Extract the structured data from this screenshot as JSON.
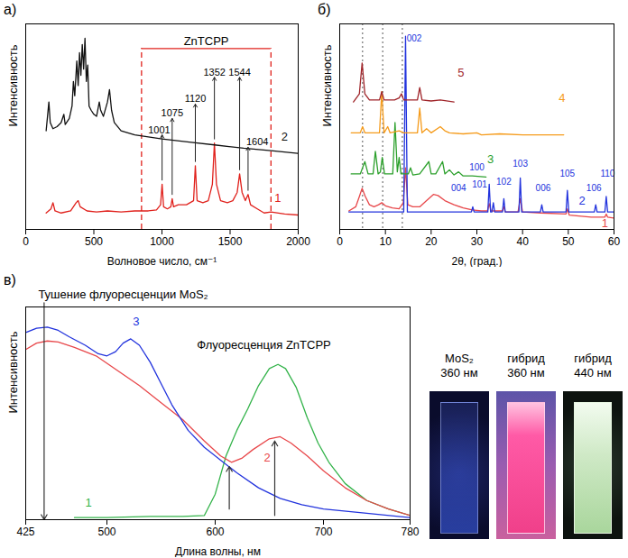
{
  "chart_data": [
    {
      "type": "line",
      "panel_label": "а)",
      "x_label": "Волновое число, см⁻¹",
      "y_label": "Интенсивность",
      "xlim": [
        0,
        2000
      ],
      "xticks": [
        0,
        500,
        1000,
        1500,
        2000
      ],
      "ylim": [
        0,
        100
      ],
      "tick_labels": "x",
      "grid": false,
      "series": [
        {
          "name": "1",
          "color": "#e0201b",
          "label_at": [
            1850,
            15
          ],
          "x": [
            150,
            185,
            200,
            215,
            260,
            330,
            370,
            385,
            400,
            450,
            520,
            600,
            700,
            800,
            900,
            960,
            990,
            1001,
            1012,
            1040,
            1065,
            1075,
            1085,
            1120,
            1180,
            1232,
            1245,
            1258,
            1300,
            1340,
            1370,
            1385,
            1400,
            1430,
            1480,
            1520,
            1552,
            1570,
            1588,
            1612,
            1632,
            1650,
            1700,
            1750,
            1800,
            1900,
            2000
          ],
          "values": [
            8,
            10,
            13,
            9,
            8,
            9,
            13,
            14,
            11,
            9,
            8.5,
            9,
            8.5,
            9,
            9,
            9.5,
            12,
            22,
            11,
            10,
            11,
            15,
            11,
            12,
            12,
            14,
            31,
            14,
            13,
            14,
            22,
            42,
            22,
            14,
            13,
            14,
            18,
            27,
            18,
            14,
            17,
            12,
            10,
            8,
            8.5,
            7.5,
            7
          ]
        },
        {
          "name": "2",
          "color": "#111111",
          "label_at": [
            1900,
            45
          ],
          "x": [
            150,
            160,
            170,
            180,
            200,
            230,
            260,
            280,
            290,
            320,
            340,
            350,
            360,
            375,
            385,
            395,
            405,
            415,
            425,
            435,
            445,
            455,
            465,
            480,
            500,
            520,
            540,
            550,
            570,
            600,
            615,
            630,
            650,
            700,
            750,
            800,
            900,
            1000,
            1200,
            1400,
            1600,
            1800,
            2000
          ],
          "values": [
            48,
            55,
            62,
            52,
            49,
            50,
            52,
            56,
            51,
            54,
            60,
            72,
            65,
            82,
            70,
            86,
            75,
            90,
            78,
            93,
            72,
            80,
            60,
            58,
            56,
            55,
            62,
            58,
            55,
            62,
            68,
            58,
            52,
            48,
            47,
            46,
            45,
            44,
            42.5,
            41,
            39.5,
            38.3,
            37
          ]
        }
      ],
      "region": {
        "label": "ZnTCPP",
        "x": [
          850,
          1800
        ],
        "y": 88,
        "color": "#e0201b",
        "line_style": "dashed"
      },
      "peak_labels": [
        {
          "label": "1001",
          "x": 1001,
          "label_x": 980,
          "from": 24,
          "to": 46
        },
        {
          "label": "1075",
          "x": 1075,
          "from": 17,
          "to": 54
        },
        {
          "label": "1120",
          "x": 1245,
          "from": 33,
          "to": 61
        },
        {
          "label": "1352",
          "x": 1385,
          "from": 44,
          "to": 74
        },
        {
          "label": "1544",
          "x": 1570,
          "from": 29,
          "to": 74
        },
        {
          "label": "1604",
          "x": 1632,
          "label_x": 1700,
          "from": 19,
          "to": 40
        }
      ]
    },
    {
      "type": "line",
      "panel_label": "б)",
      "x_label": "2θ, (град.)",
      "y_label": "Интенсивность",
      "xlim": [
        0,
        60
      ],
      "xticks": [
        0,
        10,
        20,
        30,
        40,
        50,
        60
      ],
      "ylim": [
        0,
        100
      ],
      "tick_labels": "x",
      "grid": false,
      "reference_lines": {
        "x": [
          5.0,
          9.4,
          13.7
        ],
        "line_style": "dotted"
      },
      "series": [
        {
          "name": "1",
          "color": "#e8474a",
          "label_at": [
            58,
            3
          ],
          "x": [
            2,
            3.5,
            4.3,
            4.9,
            5.6,
            6.5,
            7.5,
            8.5,
            9.2,
            10,
            11.5,
            13,
            13.9,
            14.4,
            14.9,
            16,
            17.5,
            19,
            20.5,
            21.5,
            23,
            25,
            27,
            29,
            31,
            32.3,
            32.7,
            33.1,
            35.6,
            35.9,
            36.2,
            39,
            39.5,
            40,
            44,
            49.5,
            49.8,
            50.2,
            55,
            58,
            58.3,
            58.6,
            60
          ],
          "values": [
            9,
            11,
            16,
            20,
            16,
            12,
            11,
            12,
            13,
            11.5,
            10.5,
            10,
            13,
            30,
            12,
            11,
            11,
            14,
            17,
            16.5,
            14,
            12,
            10.5,
            9.5,
            9,
            9,
            12.5,
            9,
            9,
            11,
            8.5,
            8.5,
            15,
            8.5,
            8,
            7.5,
            10,
            7,
            6,
            6,
            7.5,
            6,
            5.5
          ]
        },
        {
          "name": "2",
          "color": "#2233dd",
          "label_at": [
            53,
            14
          ],
          "x": [
            2,
            14,
            14.4,
            14.8,
            28.8,
            29.1,
            29.4,
            32.4,
            32.7,
            33.0,
            33.3,
            33.6,
            33.9,
            35.6,
            35.9,
            36.2,
            39.2,
            39.5,
            39.8,
            43.9,
            44.2,
            44.5,
            49.5,
            49.8,
            50.1,
            55.7,
            56.0,
            56.3,
            58.0,
            58.3,
            58.6,
            60
          ],
          "values": [
            8.5,
            8.5,
            94,
            8.5,
            8.5,
            11,
            8.5,
            8.5,
            22,
            8.5,
            8.5,
            13,
            8.5,
            8.5,
            15,
            8.5,
            8.5,
            25,
            8.5,
            8.5,
            12,
            8.5,
            8.5,
            19,
            8.5,
            8.5,
            12,
            8.5,
            8.5,
            16,
            8.5,
            8.5
          ]
        },
        {
          "name": "3",
          "color": "#2ca02c",
          "label_at": [
            33,
            34
          ],
          "x": [
            2.5,
            4.5,
            5.5,
            6.2,
            7.3,
            7.8,
            8.4,
            8.9,
            9.3,
            9.8,
            11.6,
            12.1,
            12.6,
            13.0,
            13.4,
            15,
            15.5,
            16,
            17.5,
            19.5,
            20,
            21,
            22.5,
            23,
            24,
            25,
            26,
            27,
            29,
            32
          ],
          "values": [
            27,
            27,
            33,
            27,
            27,
            38,
            27,
            28,
            35,
            27,
            27,
            52,
            28,
            35,
            27,
            27,
            30,
            26.5,
            27,
            33,
            27,
            27,
            33,
            27,
            29,
            26.5,
            28,
            26,
            26,
            25.5
          ]
        },
        {
          "name": "4",
          "color": "#f59b1b",
          "label_at": [
            48.6,
            64
          ],
          "x": [
            2.5,
            4.5,
            5,
            5.5,
            8.7,
            9.2,
            9.7,
            10.5,
            11,
            13,
            14,
            17,
            17.5,
            18,
            19,
            20,
            22,
            23,
            24,
            27,
            30,
            31,
            35,
            40,
            45,
            49
          ],
          "values": [
            47,
            47,
            50,
            47,
            47,
            67,
            47,
            50,
            47,
            48,
            47,
            47,
            59,
            47,
            49,
            47,
            50,
            48,
            47,
            46.5,
            47,
            46,
            46.5,
            46,
            46,
            46
          ]
        },
        {
          "name": "5",
          "color": "#a0252a",
          "label_at": [
            26.5,
            76
          ],
          "x": [
            3,
            4.3,
            4.9,
            5.5,
            6.5,
            8.7,
            9.2,
            9.7,
            12,
            13.0,
            13.5,
            14,
            17,
            17.5,
            18,
            20,
            22,
            25
          ],
          "values": [
            62,
            66,
            81,
            66,
            63,
            63,
            67,
            63,
            63,
            64,
            66,
            63,
            63,
            69,
            63,
            62.5,
            63,
            62
          ]
        }
      ],
      "hkl_labels": [
        {
          "label": "002",
          "x": 16.3,
          "y": 93,
          "series": "2"
        },
        {
          "label": "004",
          "x": 26,
          "y": 20,
          "series": "2"
        },
        {
          "label": "100",
          "x": 30.0,
          "y": 30,
          "series": "2"
        },
        {
          "label": "101",
          "x": 30.6,
          "y": 22,
          "series": "2"
        },
        {
          "label": "102",
          "x": 35.9,
          "y": 23,
          "series": "2"
        },
        {
          "label": "103",
          "x": 39.5,
          "y": 32,
          "series": "2"
        },
        {
          "label": "006",
          "x": 44.5,
          "y": 20,
          "series": "2"
        },
        {
          "label": "105",
          "x": 49.8,
          "y": 27,
          "series": "2"
        },
        {
          "label": "106",
          "x": 55.6,
          "y": 20,
          "series": "2"
        },
        {
          "label": "110",
          "x": 58.6,
          "y": 27,
          "series": "2"
        }
      ]
    },
    {
      "type": "line",
      "panel_label": "в)",
      "x_label": "Длина волны, нм",
      "y_label": "Интенсивность",
      "xlim": [
        425,
        780
      ],
      "xticks": [
        425,
        500,
        600,
        700,
        780
      ],
      "ylim": [
        0,
        100
      ],
      "tick_labels": "x",
      "grid": false,
      "series": [
        {
          "name": "1",
          "color": "#33b34a",
          "label_at": [
            483,
            8
          ],
          "x": [
            470,
            500,
            540,
            570,
            590,
            600,
            610,
            620,
            630,
            640,
            650,
            658,
            665,
            675,
            685,
            695,
            705,
            720,
            740,
            760,
            780
          ],
          "values": [
            1,
            1,
            1.5,
            1.5,
            2,
            12,
            30,
            42,
            52,
            63,
            71,
            73,
            71,
            62,
            48,
            36,
            27,
            17,
            9,
            5,
            2
          ]
        },
        {
          "name": "2",
          "color": "#e8474a",
          "label_at": [
            648,
            29
          ],
          "x": [
            425,
            435,
            445,
            455,
            470,
            490,
            510,
            530,
            550,
            570,
            590,
            605,
            615,
            625,
            635,
            650,
            660,
            670,
            685,
            700,
            720,
            740,
            760,
            780
          ],
          "values": [
            80,
            83,
            84,
            83.5,
            81,
            77,
            70,
            63,
            55,
            47,
            37,
            30,
            27,
            29,
            33,
            38,
            39,
            36,
            30,
            23,
            15,
            9,
            5,
            2
          ]
        },
        {
          "name": "3",
          "color": "#2233dd",
          "label_at": [
            527,
            93
          ],
          "x": [
            425,
            435,
            445,
            455,
            465,
            480,
            492,
            500,
            508,
            515,
            522,
            530,
            540,
            550,
            560,
            575,
            590,
            605,
            620,
            640,
            660,
            680,
            700,
            740,
            780
          ],
          "values": [
            88,
            90,
            90.5,
            89,
            86,
            82,
            78,
            77,
            79,
            83,
            85,
            82,
            74,
            64,
            54,
            42,
            34,
            28,
            22,
            15,
            10,
            7,
            5,
            3,
            1
          ]
        }
      ],
      "annotations": [
        {
          "text": "Тушение флуоресценции MoS₂",
          "x": 515,
          "y": 106
        },
        {
          "text": "Флуоресценция ZnTCPP",
          "x": 645,
          "y": 82
        }
      ],
      "arrows": [
        {
          "x": 442,
          "from": 102,
          "to": 0
        },
        {
          "x": 613,
          "from": 5,
          "to": 25
        },
        {
          "x": 655,
          "from": 2,
          "to": 37
        }
      ]
    }
  ],
  "photos": [
    {
      "label": "MoS₂",
      "wavelength": "360 нм"
    },
    {
      "label": "гибрид",
      "wavelength": "360 нм"
    },
    {
      "label": "гибрид",
      "wavelength": "440 нм"
    }
  ]
}
